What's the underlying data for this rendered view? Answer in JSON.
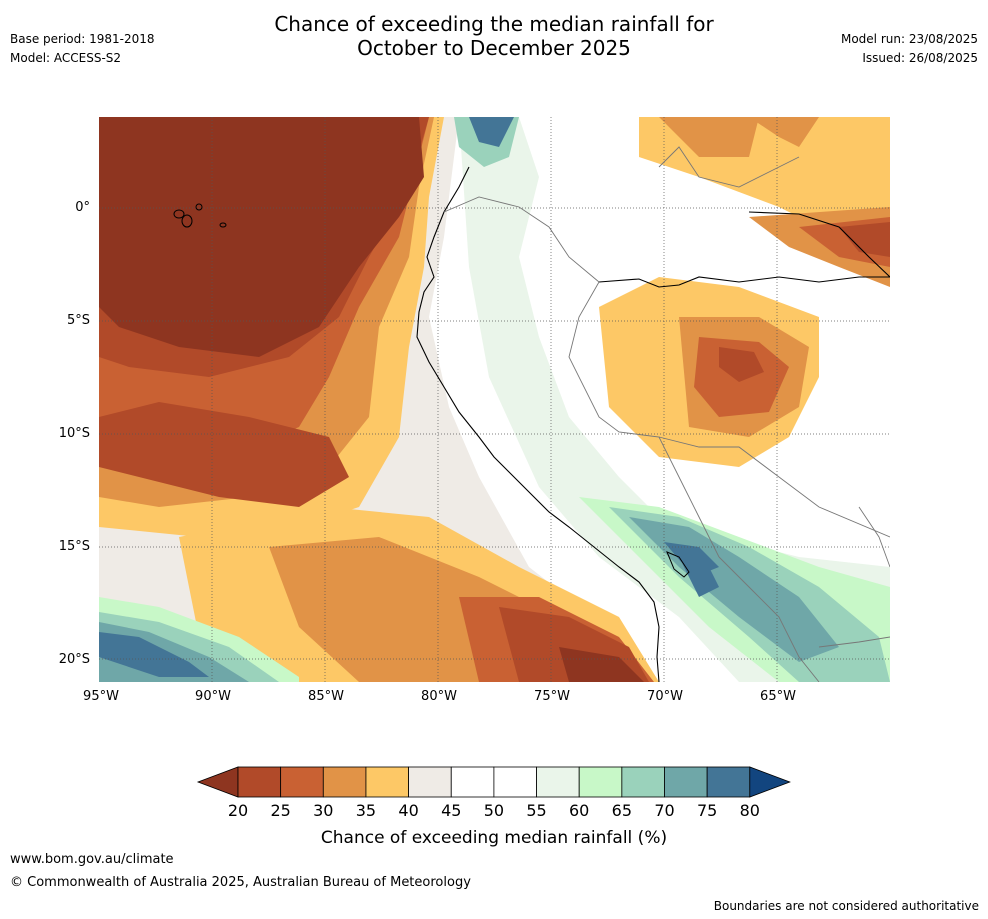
{
  "title": {
    "line1": "Chance of exceeding the median rainfall for",
    "line2": "October to December 2025"
  },
  "meta_left": {
    "base_period": "Base period: 1981-2018",
    "model": "Model: ACCESS-S2"
  },
  "meta_right": {
    "model_run": "Model run: 23/08/2025",
    "issued": "Issued: 26/08/2025"
  },
  "map": {
    "lat_labels": [
      "0°",
      "5°S",
      "10°S",
      "15°S",
      "20°S"
    ],
    "lon_labels": [
      "95°W",
      "90°W",
      "85°W",
      "80°W",
      "75°W",
      "70°W",
      "65°W"
    ],
    "colors": {
      "c20": "#8e3520",
      "c25": "#b14a29",
      "c30": "#c96133",
      "c35": "#e19347",
      "c40": "#fdc866",
      "c45": "#efebe6",
      "c50": "#ffffff",
      "c55": "#eaf5ea",
      "c60": "#c8f8c8",
      "c65": "#9ad2bb",
      "c70": "#6fa7a8",
      "c75": "#437596",
      "c80": "#12457f"
    }
  },
  "colorbar": {
    "label": "Chance of exceeding median rainfall (%)",
    "ticks": [
      "20",
      "25",
      "30",
      "35",
      "40",
      "45",
      "50",
      "55",
      "60",
      "65",
      "70",
      "75",
      "80"
    ],
    "colors": [
      "#8e3520",
      "#b14a29",
      "#c96133",
      "#e19347",
      "#fdc866",
      "#efebe6",
      "#ffffff",
      "#ffffff",
      "#eaf5ea",
      "#c8f8c8",
      "#9ad2bb",
      "#6fa7a8",
      "#437596",
      "#12457f"
    ]
  },
  "footer": {
    "url": "www.bom.gov.au/climate",
    "copyright": "© Commonwealth of Australia 2025, Australian Bureau of Meteorology",
    "note": "Boundaries are not considered authoritative"
  }
}
